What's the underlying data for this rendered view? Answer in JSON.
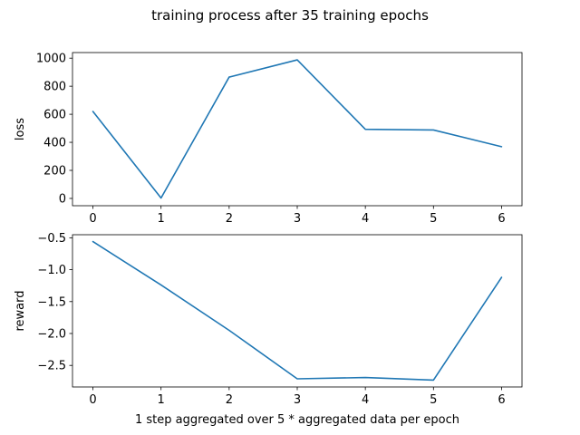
{
  "suptitle": "training process after 35 training epochs",
  "chart_data": [
    {
      "type": "line",
      "x": [
        0,
        1,
        2,
        3,
        4,
        5,
        6
      ],
      "series": [
        {
          "values": [
            620,
            3,
            865,
            988,
            493,
            488,
            369
          ],
          "color": "#1f77b4"
        }
      ],
      "xlabel": "",
      "ylabel": "loss",
      "xlim": [
        -0.3,
        6.3
      ],
      "ylim": [
        -52,
        1040
      ],
      "xticks": [
        0,
        1,
        2,
        3,
        4,
        5,
        6
      ],
      "yticks": [
        0,
        200,
        400,
        600,
        800,
        1000
      ],
      "grid": false
    },
    {
      "type": "line",
      "x": [
        0,
        1,
        2,
        3,
        4,
        5,
        6
      ],
      "series": [
        {
          "values": [
            -0.56,
            -1.24,
            -1.95,
            -2.71,
            -2.69,
            -2.73,
            -1.12
          ],
          "color": "#1f77b4"
        }
      ],
      "xlabel": "1 step aggregated over 5 * aggregated data per epoch",
      "ylabel": "reward",
      "xlim": [
        -0.3,
        6.3
      ],
      "ylim": [
        -2.838,
        -0.452
      ],
      "xticks": [
        0,
        1,
        2,
        3,
        4,
        5,
        6
      ],
      "yticks": [
        -2.5,
        -2.0,
        -1.5,
        -1.0,
        -0.5
      ],
      "ytick_labels": [
        "−2.5",
        "−2.0",
        "−1.5",
        "−1.0",
        "−0.5"
      ],
      "grid": false
    }
  ]
}
